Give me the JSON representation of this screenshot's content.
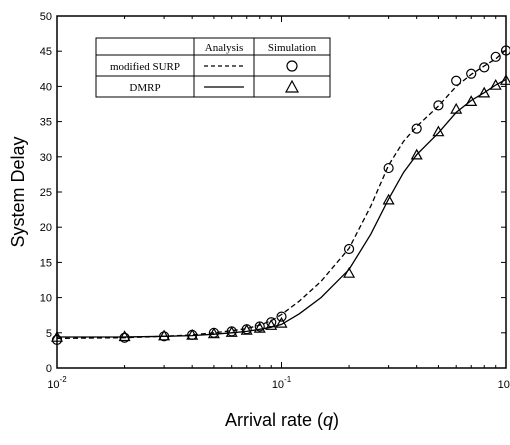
{
  "chart_data": {
    "type": "line",
    "xlabel": "Arrival rate (",
    "xlabel_var": "q",
    "xlabel_close": ")",
    "ylabel": "System Delay",
    "x_scale": "log",
    "xlim": [
      0.01,
      1
    ],
    "ylim": [
      0,
      50
    ],
    "x_ticks": [
      {
        "value": 0.01,
        "base": "10",
        "exp": "-2"
      },
      {
        "value": 0.1,
        "base": "10",
        "exp": "-1"
      },
      {
        "value": 1,
        "base": "10",
        "exp": "0"
      }
    ],
    "y_ticks": [
      0,
      5,
      10,
      15,
      20,
      25,
      30,
      35,
      40,
      45,
      50
    ],
    "grid": false,
    "legend": {
      "placement": "top-left",
      "header": [
        "",
        "Analysis",
        "Simulation"
      ],
      "rows": [
        {
          "label": "modified SURP",
          "analysis": "dashed line",
          "simulation": "circle"
        },
        {
          "label": "DMRP",
          "analysis": "solid line",
          "simulation": "triangle"
        }
      ]
    },
    "series": [
      {
        "name": "modified SURP",
        "line_style": "dashed",
        "marker": "circle",
        "analysis": {
          "x": [
            0.01,
            0.02,
            0.03,
            0.04,
            0.05,
            0.06,
            0.07,
            0.08,
            0.09,
            0.1,
            0.12,
            0.15,
            0.2,
            0.25,
            0.3,
            0.35,
            0.4,
            0.5,
            0.6,
            0.7,
            0.8,
            0.9,
            1.0
          ],
          "y": [
            4.2,
            4.3,
            4.5,
            4.7,
            5.0,
            5.3,
            5.6,
            6.1,
            6.7,
            7.6,
            9.5,
            12.3,
            17.0,
            23.0,
            28.8,
            32.2,
            34.3,
            37.2,
            40.0,
            41.7,
            42.9,
            43.9,
            45.2
          ]
        },
        "simulation": {
          "x": [
            0.01,
            0.02,
            0.03,
            0.04,
            0.05,
            0.06,
            0.07,
            0.08,
            0.09,
            0.1,
            0.2,
            0.3,
            0.4,
            0.5,
            0.6,
            0.7,
            0.8,
            0.9,
            1.0
          ],
          "y": [
            4.0,
            4.3,
            4.5,
            4.7,
            5.0,
            5.2,
            5.5,
            5.9,
            6.5,
            7.3,
            16.9,
            28.4,
            34.0,
            37.3,
            40.8,
            41.8,
            42.7,
            44.2,
            45.1
          ]
        }
      },
      {
        "name": "DMRP",
        "line_style": "solid",
        "marker": "triangle",
        "analysis": {
          "x": [
            0.01,
            0.02,
            0.03,
            0.04,
            0.05,
            0.06,
            0.07,
            0.08,
            0.09,
            0.1,
            0.12,
            0.15,
            0.2,
            0.25,
            0.3,
            0.35,
            0.4,
            0.5,
            0.6,
            0.7,
            0.8,
            0.9,
            1.0
          ],
          "y": [
            4.4,
            4.4,
            4.5,
            4.6,
            4.8,
            5.0,
            5.2,
            5.5,
            5.8,
            6.2,
            7.7,
            10.0,
            14.0,
            19.0,
            24.0,
            27.8,
            30.3,
            33.4,
            36.3,
            38.0,
            39.1,
            40.2,
            41.0
          ]
        },
        "simulation": {
          "x": [
            0.01,
            0.02,
            0.03,
            0.04,
            0.05,
            0.06,
            0.07,
            0.08,
            0.09,
            0.1,
            0.2,
            0.3,
            0.4,
            0.5,
            0.6,
            0.7,
            0.8,
            0.9,
            1.0
          ],
          "y": [
            4.3,
            4.4,
            4.5,
            4.6,
            4.8,
            5.0,
            5.3,
            5.6,
            6.0,
            6.3,
            13.4,
            23.8,
            30.2,
            33.5,
            36.7,
            37.8,
            39.0,
            40.1,
            40.8
          ]
        }
      }
    ]
  }
}
